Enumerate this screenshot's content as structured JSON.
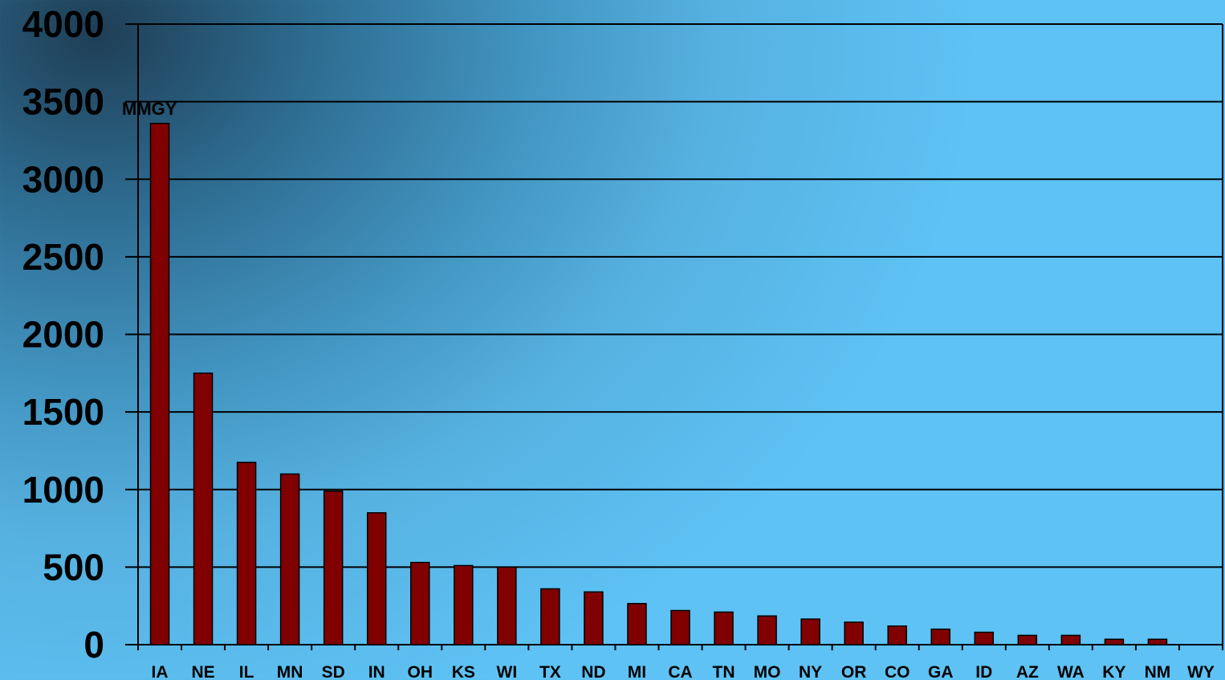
{
  "chart_data": {
    "type": "bar",
    "unit_label": "MMGY",
    "categories": [
      "IA",
      "NE",
      "IL",
      "MN",
      "SD",
      "IN",
      "OH",
      "KS",
      "WI",
      "TX",
      "ND",
      "MI",
      "CA",
      "TN",
      "MO",
      "NY",
      "OR",
      "CO",
      "GA",
      "ID",
      "AZ",
      "WA",
      "KY",
      "NM",
      "WY"
    ],
    "values": [
      3360,
      1750,
      1175,
      1100,
      990,
      850,
      530,
      510,
      500,
      360,
      340,
      265,
      220,
      210,
      185,
      165,
      145,
      120,
      100,
      80,
      60,
      60,
      35,
      35,
      0
    ],
    "ylim": [
      0,
      4000
    ],
    "yticks": [
      0,
      500,
      1000,
      1500,
      2000,
      2500,
      3000,
      3500,
      4000
    ],
    "title": "",
    "xlabel": "",
    "ylabel": "",
    "grid": true,
    "colors": {
      "bar_fill": "#800000",
      "bar_stroke": "#000000",
      "grid": "#000000",
      "text": "#000000"
    }
  }
}
